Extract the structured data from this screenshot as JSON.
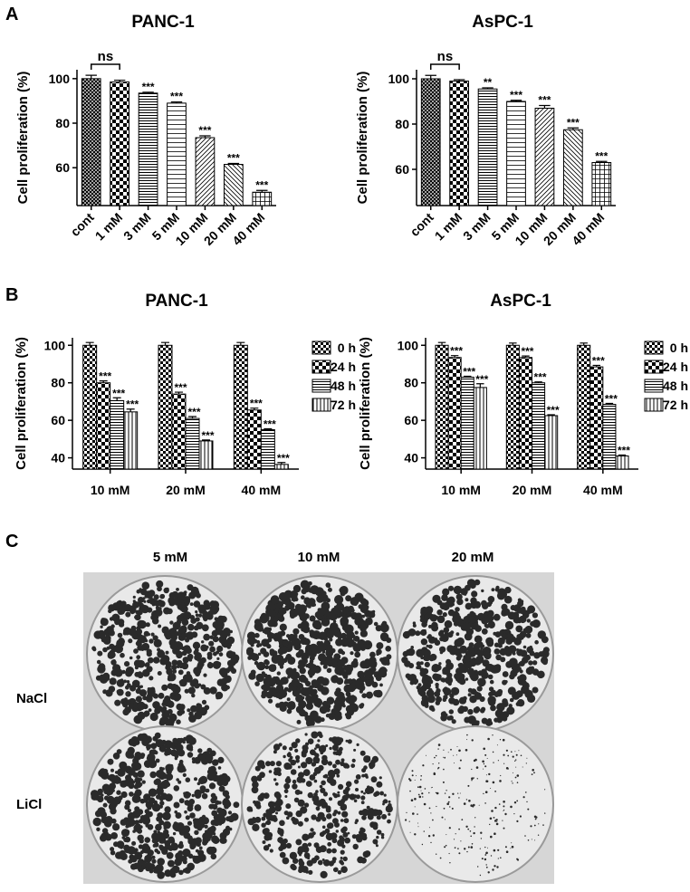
{
  "panels": [
    "A",
    "B",
    "C"
  ],
  "chart_data": [
    {
      "type": "bar",
      "title": "PANC-1",
      "ylabel": "Cell proliferation (%)",
      "categories": [
        "cont",
        "1 mM",
        "3 mM",
        "5 mM",
        "10 mM",
        "20 mM",
        "40 mM"
      ],
      "values": [
        100,
        98.5,
        93.5,
        89,
        73.5,
        61.5,
        49
      ],
      "errors": [
        1.5,
        0.8,
        0.4,
        0.5,
        0.8,
        0.4,
        0.8
      ],
      "significance": [
        null,
        "ns",
        "***",
        "***",
        "***",
        "***",
        "***"
      ],
      "ylim": [
        43,
        104
      ],
      "yticks": [
        60,
        80,
        100
      ]
    },
    {
      "type": "bar",
      "title": "AsPC-1",
      "ylabel": "Cell proliferation (%)",
      "categories": [
        "cont",
        "1 mM",
        "3 mM",
        "5 mM",
        "10 mM",
        "20 mM",
        "40 mM"
      ],
      "values": [
        100,
        99,
        95.5,
        90,
        87,
        77.5,
        63
      ],
      "errors": [
        1.5,
        0.6,
        0.5,
        0.5,
        1.2,
        0.8,
        0.5
      ],
      "significance": [
        null,
        "ns",
        "**",
        "***",
        "***",
        "***",
        "***"
      ],
      "ylim": [
        44,
        104
      ],
      "yticks": [
        60,
        80,
        100
      ]
    },
    {
      "type": "grouped-bar",
      "title": "PANC-1",
      "ylabel": "Cell proliferation (%)",
      "categories": [
        "10 mM",
        "20 mM",
        "40 mM"
      ],
      "series": [
        {
          "name": "0 h",
          "values": [
            100,
            100,
            100
          ],
          "errors": [
            1.5,
            1.5,
            1.5
          ]
        },
        {
          "name": "24 h",
          "values": [
            80,
            74,
            65.5
          ],
          "errors": [
            1,
            1,
            1
          ],
          "significance": [
            "***",
            "***",
            "***"
          ]
        },
        {
          "name": "48 h",
          "values": [
            70.5,
            61,
            55
          ],
          "errors": [
            1.5,
            1,
            0.5
          ],
          "significance": [
            "***",
            "***",
            "***"
          ]
        },
        {
          "name": "72 h",
          "values": [
            64.5,
            49,
            36.5
          ],
          "errors": [
            1.5,
            0.5,
            1
          ],
          "significance": [
            "***",
            "***",
            "***"
          ]
        }
      ],
      "ylim": [
        34,
        104
      ],
      "yticks": [
        40,
        60,
        80,
        100
      ]
    },
    {
      "type": "grouped-bar",
      "title": "AsPC-1",
      "ylabel": "Cell proliferation (%)",
      "categories": [
        "10 mM",
        "20 mM",
        "40 mM"
      ],
      "series": [
        {
          "name": "0 h",
          "values": [
            100,
            100,
            100
          ],
          "errors": [
            1.5,
            1.2,
            1.2
          ]
        },
        {
          "name": "24 h",
          "values": [
            93.5,
            93.5,
            88.5
          ],
          "errors": [
            1,
            0.8,
            0.8
          ],
          "significance": [
            "***",
            "***",
            "***"
          ]
        },
        {
          "name": "48 h",
          "values": [
            83,
            80,
            68.5
          ],
          "errors": [
            0.5,
            0.5,
            0.5
          ],
          "significance": [
            "***",
            "***",
            "***"
          ]
        },
        {
          "name": "72 h",
          "values": [
            77.5,
            62.5,
            41
          ],
          "errors": [
            2,
            0.5,
            0.5
          ],
          "significance": [
            "***",
            "***",
            "***"
          ]
        }
      ],
      "ylim": [
        34,
        104
      ],
      "yticks": [
        40,
        60,
        80,
        100
      ]
    }
  ],
  "photo": {
    "columns": [
      "5 mM",
      "10 mM",
      "20 mM"
    ],
    "rows": [
      "NaCl",
      "LiCl"
    ]
  }
}
